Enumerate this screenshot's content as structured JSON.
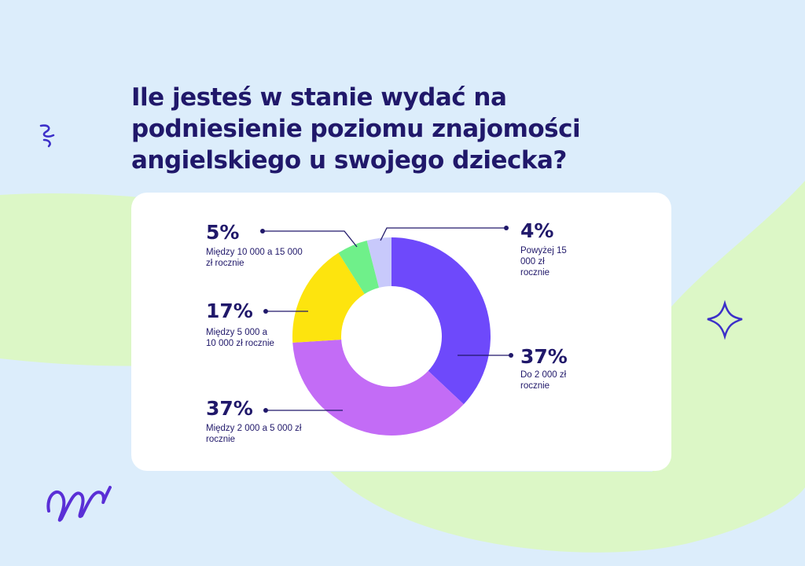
{
  "page": {
    "title": "Ile jesteś w stanie wydać na podniesienie poziomu znajomości angielskiego u swojego dziecka?"
  },
  "colors": {
    "background": "#dcedfb",
    "accent_green": "#d9f7c2",
    "title": "#20186a",
    "icon_stroke": "#3c2fc9"
  },
  "chart_data": {
    "type": "pie",
    "donut": true,
    "title": "Ile jesteś w stanie wydać na podniesienie poziomu znajomości angielskiego u swojego dziecka?",
    "slices": [
      {
        "pct_label": "37%",
        "value": 37,
        "label": "Do 2 000 zł rocznie",
        "color": "#6e49fb"
      },
      {
        "pct_label": "37%",
        "value": 37,
        "label": "Między 2 000 a 5 000 zł rocznie",
        "color": "#c36cf6"
      },
      {
        "pct_label": "17%",
        "value": 17,
        "label": "Między 5 000 a 10 000 zł rocznie",
        "color": "#fde40e"
      },
      {
        "pct_label": "5%",
        "value": 5,
        "label": "Między 10 000 a 15 000 zł rocznie",
        "color": "#6ff08a"
      },
      {
        "pct_label": "4%",
        "value": 4,
        "label": "Powyżej 15 000 zł rocznie",
        "color": "#c8c9fb"
      }
    ]
  },
  "icons": [
    "cash-icon",
    "coins-icon",
    "sparkle-icon",
    "squiggle-icon"
  ]
}
